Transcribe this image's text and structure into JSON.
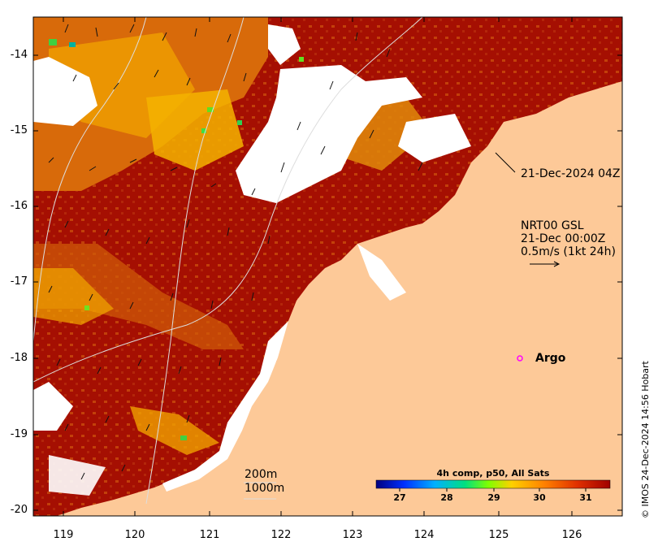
{
  "map": {
    "lat_ticks": [
      "-14",
      "-15",
      "-16",
      "-17",
      "-18",
      "-19",
      "-20"
    ],
    "lon_ticks": [
      "119",
      "120",
      "121",
      "122",
      "123",
      "124",
      "125",
      "126"
    ],
    "lon_range": [
      118.6,
      126.8
    ],
    "lat_range": [
      -20.1,
      -13.5
    ]
  },
  "annotations": {
    "image_time": "21-Dec-2024 04Z",
    "current_source": "NRT00 GSL",
    "current_time": "21-Dec 00:00Z",
    "current_scale": "0.5m/s (1kt 24h)",
    "argo_label": "Argo",
    "contour_200": "200m",
    "contour_1000": "1000m"
  },
  "colorbar": {
    "title": "4h comp, p50, All Sats",
    "ticks": [
      "27",
      "28",
      "29",
      "30",
      "31"
    ],
    "stops": [
      "#00007f",
      "#0040ff",
      "#00c0ff",
      "#00e070",
      "#7fff00",
      "#ffd000",
      "#ff8000",
      "#e03000",
      "#a00000"
    ]
  },
  "credit": "© IMOS 24-Dec-2024 14:56 Hobart",
  "colors": {
    "land": "#fdc998",
    "sst_hot": "#a50f02",
    "sst_warm": "#d86a0a",
    "sst_mid": "#f5b300",
    "cloud": "#ffffff",
    "argo_marker": "#ff00ff"
  }
}
